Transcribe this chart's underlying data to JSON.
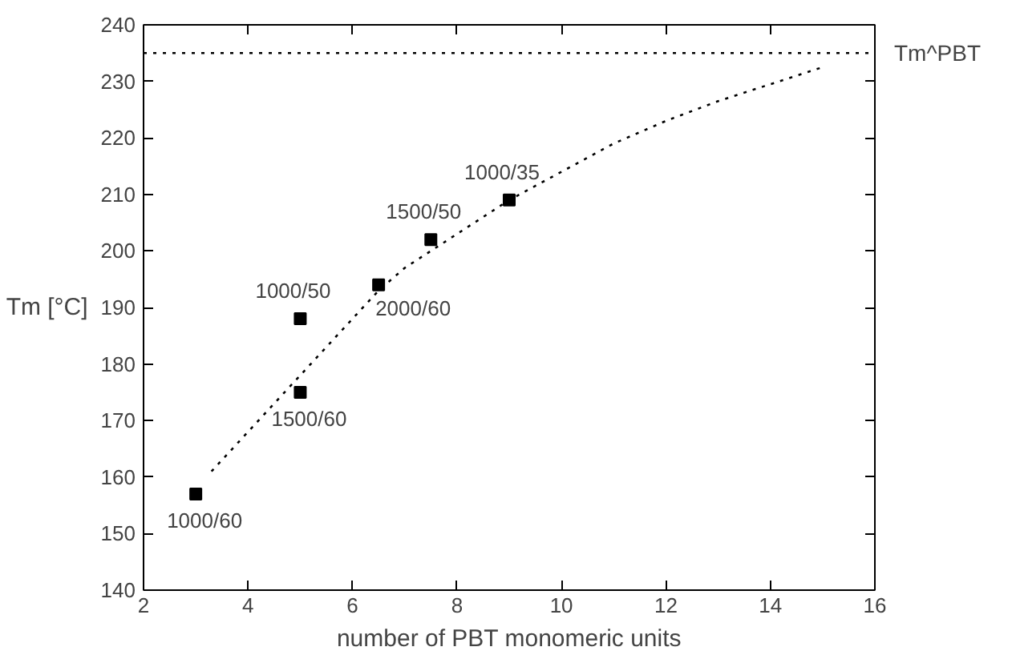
{
  "chart_data": {
    "type": "scatter",
    "xlabel": "number of PBT monomeric units",
    "ylabel": "Tm [°C]",
    "xlim": [
      2,
      16
    ],
    "xticks": [
      2,
      4,
      6,
      8,
      10,
      12,
      14,
      16
    ],
    "ylim": [
      140,
      240
    ],
    "yticks": [
      140,
      150,
      160,
      170,
      180,
      190,
      200,
      210,
      220,
      230,
      240
    ],
    "grid": false,
    "series": [
      {
        "marker": "square",
        "color": "#000000",
        "x": [
          3,
          5,
          5,
          6.5,
          7.5,
          9
        ],
        "values": [
          157,
          188,
          175,
          194,
          202,
          209
        ]
      },
      {
        "type": "line",
        "marker": "none",
        "line_style": "dotted",
        "color": "#000000",
        "x": [
          3.3,
          4,
          5,
          6,
          6.5,
          7,
          8,
          9,
          10,
          11,
          12,
          13,
          14,
          15
        ],
        "values": [
          161,
          168,
          178,
          188,
          193,
          197,
          203,
          209,
          214,
          219,
          223,
          226.5,
          229.5,
          232.5
        ]
      }
    ],
    "ref_lines": [
      {
        "axis": "y",
        "value": 235,
        "label": "Tm^PBT",
        "line_style": "dotted",
        "color": "#000000"
      }
    ],
    "annotations": [
      {
        "text": "1000/60",
        "x": 3,
        "y": 157
      },
      {
        "text": "1000/50",
        "x": 5,
        "y": 188
      },
      {
        "text": "1500/60",
        "x": 5,
        "y": 175
      },
      {
        "text": "2000/60",
        "x": 6.5,
        "y": 194
      },
      {
        "text": "1500/50",
        "x": 7.5,
        "y": 202
      },
      {
        "text": "1000/35",
        "x": 9,
        "y": 209
      }
    ]
  }
}
